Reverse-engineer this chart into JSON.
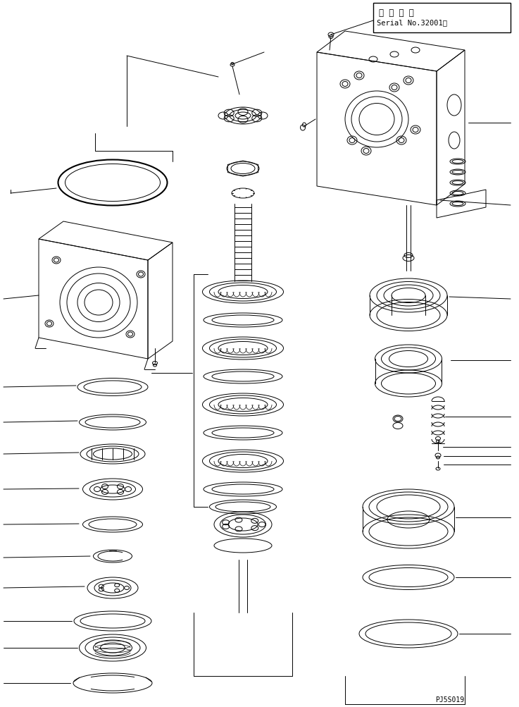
{
  "title_box_text1": "適 用 号 機",
  "title_box_text2": "Serial No.32001～",
  "part_number": "PJ5S019",
  "bg_color": "#ffffff",
  "line_color": "#000000",
  "fig_width": 7.37,
  "fig_height": 10.04,
  "dpi": 100
}
